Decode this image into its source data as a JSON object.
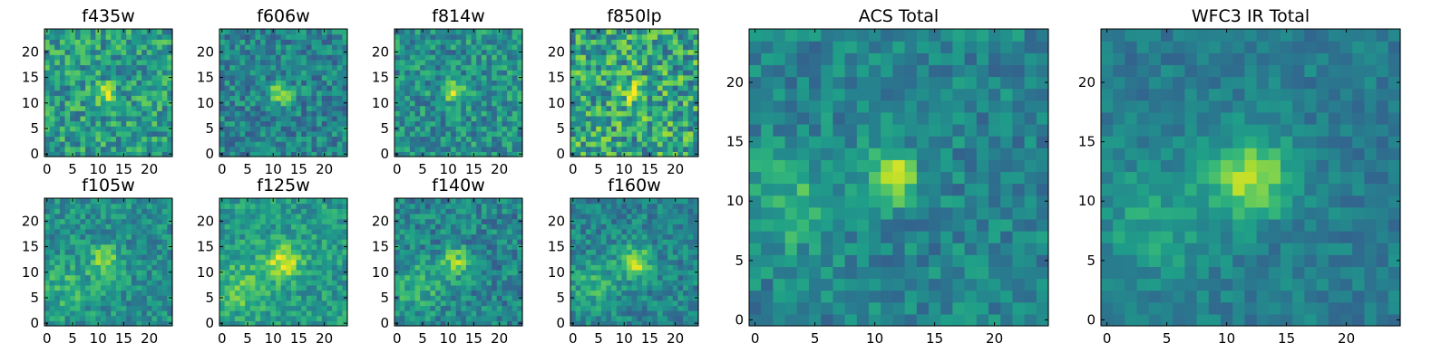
{
  "colormap": "viridis",
  "colors": {
    "low": "#440154",
    "mid": "#21918c",
    "high": "#fde725",
    "frame": "#000000",
    "background": "#ffffff"
  },
  "chart_data": [
    {
      "type": "heatmap",
      "title": "f435w",
      "size": 25,
      "xticks": [
        0,
        5,
        10,
        15,
        20
      ],
      "yticks": [
        0,
        5,
        10,
        15,
        20
      ],
      "xlim": [
        0,
        25
      ],
      "ylim": [
        0,
        25
      ],
      "source": {
        "cx": 11.5,
        "cy": 12,
        "sigma": 1.3,
        "amp": 0.35,
        "base": 0.55,
        "noise": 0.22,
        "seed": 11,
        "blob": null
      }
    },
    {
      "type": "heatmap",
      "title": "f606w",
      "size": 25,
      "xticks": [
        0,
        5,
        10,
        15,
        20
      ],
      "yticks": [
        0,
        5,
        10,
        15,
        20
      ],
      "xlim": [
        0,
        25
      ],
      "ylim": [
        0,
        25
      ],
      "source": {
        "cx": 11.5,
        "cy": 12,
        "sigma": 1.4,
        "amp": 0.45,
        "base": 0.45,
        "noise": 0.18,
        "seed": 22,
        "blob": null
      }
    },
    {
      "type": "heatmap",
      "title": "f814w",
      "size": 25,
      "xticks": [
        0,
        5,
        10,
        15,
        20
      ],
      "yticks": [
        0,
        5,
        10,
        15,
        20
      ],
      "xlim": [
        0,
        25
      ],
      "ylim": [
        0,
        25
      ],
      "source": {
        "cx": 11.5,
        "cy": 12,
        "sigma": 1.4,
        "amp": 0.4,
        "base": 0.5,
        "noise": 0.2,
        "seed": 33,
        "blob": null
      }
    },
    {
      "type": "heatmap",
      "title": "f850lp",
      "size": 25,
      "xticks": [
        0,
        5,
        10,
        15,
        20
      ],
      "yticks": [
        0,
        5,
        10,
        15,
        20
      ],
      "xlim": [
        0,
        25
      ],
      "ylim": [
        0,
        25
      ],
      "source": {
        "cx": 11.5,
        "cy": 12,
        "sigma": 1.5,
        "amp": 0.3,
        "base": 0.58,
        "noise": 0.28,
        "seed": 44,
        "blob": null
      }
    },
    {
      "type": "heatmap",
      "title": "f105w",
      "size": 25,
      "xticks": [
        0,
        5,
        10,
        15,
        20
      ],
      "yticks": [
        0,
        5,
        10,
        15,
        20
      ],
      "xlim": [
        0,
        25
      ],
      "ylim": [
        0,
        25
      ],
      "source": {
        "cx": 11.5,
        "cy": 12.5,
        "sigma": 2.0,
        "amp": 0.35,
        "base": 0.5,
        "noise": 0.16,
        "seed": 55,
        "blob": [
          4,
          7,
          3.5,
          0.15
        ]
      }
    },
    {
      "type": "heatmap",
      "title": "f125w",
      "size": 25,
      "xticks": [
        0,
        5,
        10,
        15,
        20
      ],
      "yticks": [
        0,
        5,
        10,
        15,
        20
      ],
      "xlim": [
        0,
        25
      ],
      "ylim": [
        0,
        25
      ],
      "source": {
        "cx": 12,
        "cy": 12,
        "sigma": 2.2,
        "amp": 0.4,
        "base": 0.55,
        "noise": 0.15,
        "seed": 66,
        "blob": [
          4,
          7,
          3.5,
          0.18
        ]
      }
    },
    {
      "type": "heatmap",
      "title": "f140w",
      "size": 25,
      "xticks": [
        0,
        5,
        10,
        15,
        20
      ],
      "yticks": [
        0,
        5,
        10,
        15,
        20
      ],
      "xlim": [
        0,
        25
      ],
      "ylim": [
        0,
        25
      ],
      "source": {
        "cx": 11.5,
        "cy": 12,
        "sigma": 2.0,
        "amp": 0.35,
        "base": 0.45,
        "noise": 0.17,
        "seed": 77,
        "blob": [
          4,
          7,
          3.5,
          0.2
        ]
      }
    },
    {
      "type": "heatmap",
      "title": "f160w",
      "size": 25,
      "xticks": [
        0,
        5,
        10,
        15,
        20
      ],
      "yticks": [
        0,
        5,
        10,
        15,
        20
      ],
      "xlim": [
        0,
        25
      ],
      "ylim": [
        0,
        25
      ],
      "source": {
        "cx": 12,
        "cy": 12,
        "sigma": 2.1,
        "amp": 0.45,
        "base": 0.45,
        "noise": 0.15,
        "seed": 88,
        "blob": [
          4,
          7,
          3.5,
          0.18
        ]
      }
    },
    {
      "type": "heatmap",
      "title": "ACS Total",
      "size": 25,
      "xticks": [
        0,
        5,
        10,
        15,
        20
      ],
      "yticks": [
        0,
        5,
        10,
        15,
        20
      ],
      "xlim": [
        0,
        25
      ],
      "ylim": [
        0,
        25
      ],
      "source": {
        "cx": 11.5,
        "cy": 12,
        "sigma": 1.4,
        "amp": 0.55,
        "base": 0.45,
        "noise": 0.14,
        "seed": 99,
        "blob": [
          3,
          10,
          3.0,
          0.2
        ]
      }
    },
    {
      "type": "heatmap",
      "title": "WFC3 IR Total",
      "size": 25,
      "xticks": [
        0,
        5,
        10,
        15,
        20
      ],
      "yticks": [
        0,
        5,
        10,
        15,
        20
      ],
      "xlim": [
        0,
        25
      ],
      "ylim": [
        0,
        25
      ],
      "source": {
        "cx": 12,
        "cy": 12,
        "sigma": 2.3,
        "amp": 0.45,
        "base": 0.42,
        "noise": 0.1,
        "seed": 111,
        "blob": [
          4,
          8,
          3.5,
          0.16
        ]
      }
    }
  ]
}
